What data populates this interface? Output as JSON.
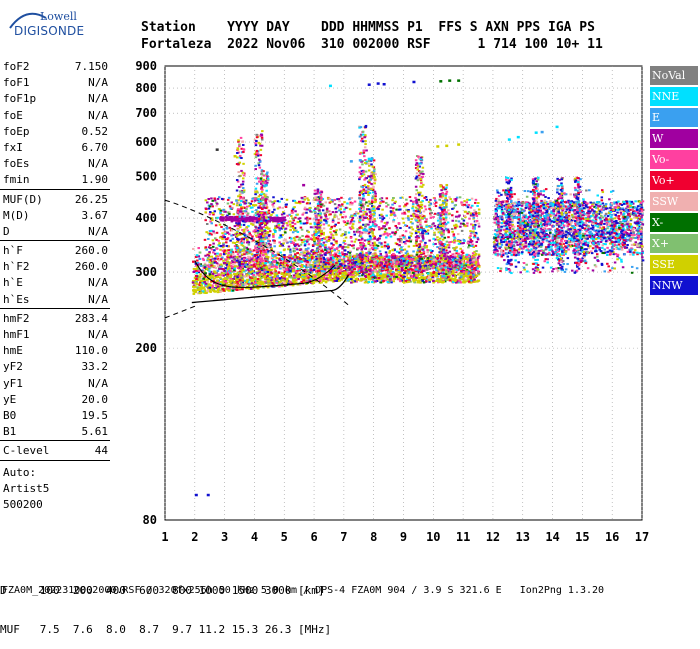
{
  "logo": {
    "top": "Lowell",
    "main": "DIGISONDE"
  },
  "header": {
    "line1": "Station    YYYY DAY    DDD HHMMSS P1  FFS S AXN PPS IGA PS",
    "line2": "Fortaleza  2022 Nov06  310 002000 RSF      1 714 100 10+ 11"
  },
  "params": {
    "group1": [
      {
        "name": "foF2",
        "value": "7.150"
      },
      {
        "name": "foF1",
        "value": "N/A"
      },
      {
        "name": "foF1p",
        "value": "N/A"
      },
      {
        "name": "foE",
        "value": "N/A"
      },
      {
        "name": "foEp",
        "value": "0.52"
      },
      {
        "name": "fxI",
        "value": "6.70"
      },
      {
        "name": "foEs",
        "value": "N/A"
      },
      {
        "name": "fmin",
        "value": "1.90"
      }
    ],
    "group2": [
      {
        "name": "MUF(D)",
        "value": "26.25"
      },
      {
        "name": "M(D)",
        "value": "3.67"
      },
      {
        "name": "D",
        "value": "N/A"
      }
    ],
    "group3": [
      {
        "name": "h`F",
        "value": "260.0"
      },
      {
        "name": "h`F2",
        "value": "260.0"
      },
      {
        "name": "h`E",
        "value": "N/A"
      },
      {
        "name": "h`Es",
        "value": "N/A"
      }
    ],
    "group4": [
      {
        "name": "hmF2",
        "value": "283.4"
      },
      {
        "name": "hmF1",
        "value": "N/A"
      },
      {
        "name": "hmE",
        "value": "110.0"
      },
      {
        "name": "yF2",
        "value": "33.2"
      },
      {
        "name": "yF1",
        "value": "N/A"
      },
      {
        "name": "yE",
        "value": "20.0"
      },
      {
        "name": "B0",
        "value": "19.5"
      },
      {
        "name": "B1",
        "value": "5.61"
      }
    ],
    "group5": [
      {
        "name": "C-level",
        "value": "44"
      }
    ],
    "auto": [
      "Auto:",
      "Artist5",
      "500200"
    ]
  },
  "legend": [
    {
      "label": "NoVal",
      "color": "#808080"
    },
    {
      "label": "NNE",
      "color": "#00e0ff"
    },
    {
      "label": "E",
      "color": "#3aa0f0"
    },
    {
      "label": "W",
      "color": "#a000a0"
    },
    {
      "label": "Vo-",
      "color": "#ff40a0"
    },
    {
      "label": "Vo+",
      "color": "#f00030"
    },
    {
      "label": "SSW",
      "color": "#f0b0b0"
    },
    {
      "label": "X-",
      "color": "#007000"
    },
    {
      "label": "X+",
      "color": "#80c070"
    },
    {
      "label": "SSE",
      "color": "#d0d000"
    },
    {
      "label": "NNW",
      "color": "#1010d0"
    }
  ],
  "chart_data": {
    "type": "scatter",
    "xlim": [
      1,
      17
    ],
    "ylim": [
      80,
      900
    ],
    "xticks": [
      1,
      2,
      3,
      4,
      5,
      6,
      7,
      8,
      9,
      10,
      11,
      12,
      13,
      14,
      15,
      16,
      17
    ],
    "yticks": [
      80,
      200,
      300,
      400,
      500,
      600,
      700,
      800,
      900
    ],
    "y_scale": "log",
    "grid": true,
    "legend_position": "right"
  },
  "footer": {
    "line1": "D     100  200  400  600  800 1000 1500 3000 [km]",
    "line2": "MUF   7.5  7.6  8.0  8.7  9.7 11.2 15.3 26.3 [MHz]",
    "line3": "FZA0M_2022310002000.RSF / 320fx256h 50 kHz 5.0 km / DPS-4 FZA0M 904 / 3.9 S 321.6 E   Ion2Png 1.3.20"
  }
}
